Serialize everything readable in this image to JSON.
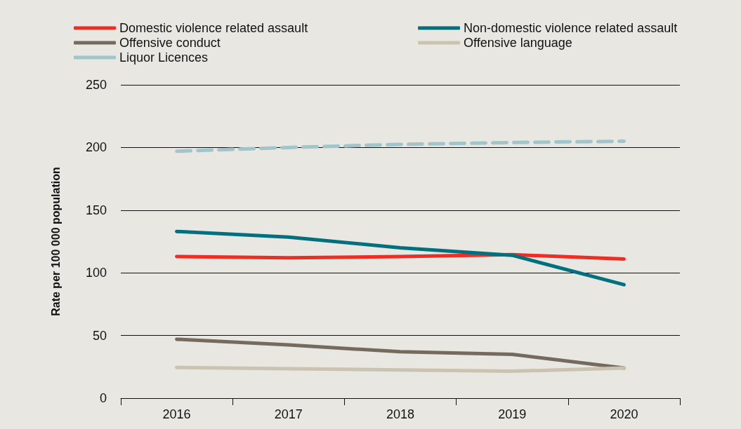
{
  "chart_data": {
    "type": "line",
    "ylabel": "Rate per 100 000 population",
    "categories": [
      "2016",
      "2017",
      "2018",
      "2019",
      "2020"
    ],
    "ylim": [
      0,
      250
    ],
    "yticks": [
      0,
      50,
      100,
      150,
      200,
      250
    ],
    "grid": "y",
    "legend": "top left",
    "marker": "none",
    "series": [
      {
        "name": "Domestic violence related assault",
        "color": "#ee2d24",
        "values": [
          113,
          112,
          113,
          114.5,
          111
        ]
      },
      {
        "name": "Non-domestic violence related assault",
        "color": "#00707f",
        "values": [
          133,
          128.5,
          120,
          114,
          90.5
        ]
      },
      {
        "name": "Offensive conduct",
        "color": "#746b5e",
        "values": [
          47,
          42.5,
          37,
          35,
          24
        ]
      },
      {
        "name": "Offensive language",
        "color": "#cac3b0",
        "values": [
          24.5,
          23.5,
          22.5,
          21.5,
          24
        ]
      },
      {
        "name": "Liquor Licences",
        "color": "#a0c5ca",
        "values": [
          197,
          200,
          202.5,
          204,
          205
        ],
        "line_style": "dashed"
      }
    ]
  }
}
